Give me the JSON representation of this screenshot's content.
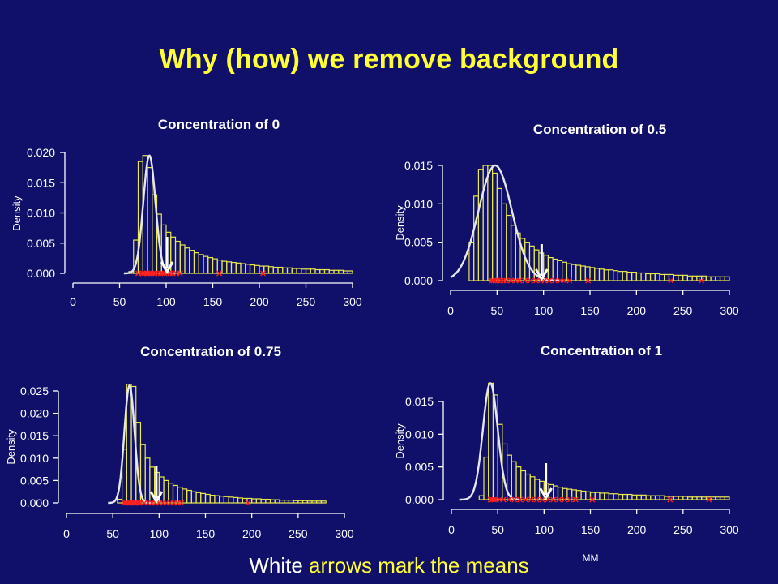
{
  "slide": {
    "title": "Why (how) we remove background",
    "caption_white": "White",
    "caption_yellow": "arrows mark the means"
  },
  "colors": {
    "background": "#10106a",
    "title": "#ffff33",
    "histogram": "#e8e84a",
    "density_curve": "#e6e6f0",
    "arrow": "#ffffff",
    "rug_marks": "#ff2020",
    "axes": "#ffffff"
  },
  "chart_data": [
    {
      "type": "histogram",
      "title": "Concentration of 0",
      "xlabel": "",
      "ylabel": "Density",
      "xlim": [
        0,
        300
      ],
      "ylim": [
        0,
        0.02
      ],
      "xticks": [
        "0",
        "50",
        "100",
        "150",
        "200",
        "250",
        "300"
      ],
      "yticks": [
        "0.000",
        "0.005",
        "0.010",
        "0.015",
        "0.020"
      ],
      "bin_start": 60,
      "bin_width": 5,
      "histogram_densities": [
        0.0003,
        0.0055,
        0.0185,
        0.0195,
        0.0175,
        0.013,
        0.0098,
        0.008,
        0.0068,
        0.006,
        0.0053,
        0.0047,
        0.0042,
        0.0038,
        0.0034,
        0.0031,
        0.0028,
        0.0026,
        0.0024,
        0.0022,
        0.002,
        0.0019,
        0.0018,
        0.0017,
        0.0016,
        0.0015,
        0.0014,
        0.0013,
        0.0012,
        0.0012,
        0.0011,
        0.001,
        0.001,
        0.0009,
        0.0009,
        0.0008,
        0.0008,
        0.0007,
        0.0007,
        0.0007,
        0.0006,
        0.0006,
        0.0006,
        0.0005,
        0.0005,
        0.0005,
        0.0004,
        0.0004
      ],
      "density_curve": {
        "mean": 82,
        "sd": 6.5,
        "peak": 0.0195
      },
      "mean_arrow": 101,
      "rug_x": [
        70,
        73,
        75,
        77,
        79,
        80,
        82,
        84,
        86,
        88,
        91,
        94,
        96,
        98,
        101,
        104,
        107,
        111,
        115,
        157,
        204
      ]
    },
    {
      "type": "histogram",
      "title": "Concentration of 0.5",
      "xlabel": "",
      "ylabel": "Density",
      "xlim": [
        0,
        300
      ],
      "ylim": [
        0,
        0.015
      ],
      "xticks": [
        "0",
        "50",
        "100",
        "150",
        "200",
        "250",
        "300"
      ],
      "yticks": [
        "0.000",
        "0.005",
        "0.010",
        "0.015"
      ],
      "bin_start": 20,
      "bin_width": 5,
      "histogram_densities": [
        0.005,
        0.011,
        0.0145,
        0.015,
        0.015,
        0.014,
        0.012,
        0.01,
        0.0085,
        0.0072,
        0.0062,
        0.0055,
        0.005,
        0.0045,
        0.004,
        0.0036,
        0.0033,
        0.003,
        0.0028,
        0.0026,
        0.0024,
        0.0022,
        0.0021,
        0.002,
        0.0019,
        0.0018,
        0.0017,
        0.0016,
        0.0015,
        0.0014,
        0.0014,
        0.0013,
        0.0012,
        0.0012,
        0.0011,
        0.0011,
        0.001,
        0.001,
        0.0009,
        0.0009,
        0.0009,
        0.0008,
        0.0008,
        0.0008,
        0.0007,
        0.0007,
        0.0007,
        0.0006,
        0.0006,
        0.0006,
        0.0006,
        0.0005,
        0.0005,
        0.0005,
        0.0005,
        0.0005
      ],
      "density_curve": {
        "mean": 48,
        "sd": 18,
        "peak": 0.015
      },
      "mean_arrow": 98,
      "rug_x": [
        44,
        46,
        48,
        51,
        54,
        57,
        60,
        65,
        70,
        74,
        80,
        86,
        92,
        97,
        101,
        106,
        112,
        118,
        122,
        128,
        148,
        237,
        270
      ]
    },
    {
      "type": "histogram",
      "title": "Concentration of 0.75",
      "xlabel": "",
      "ylabel": "Density",
      "xlim": [
        0,
        300
      ],
      "ylim": [
        0,
        0.025
      ],
      "xticks": [
        "0",
        "50",
        "100",
        "150",
        "200",
        "250",
        "300"
      ],
      "yticks": [
        "0.000",
        "0.005",
        "0.010",
        "0.015",
        "0.020",
        "0.025"
      ],
      "bin_start": 55,
      "bin_width": 5,
      "histogram_densities": [
        0.0008,
        0.012,
        0.0265,
        0.026,
        0.018,
        0.013,
        0.01,
        0.008,
        0.0068,
        0.0058,
        0.005,
        0.0044,
        0.0039,
        0.0035,
        0.0031,
        0.0028,
        0.0025,
        0.0023,
        0.0021,
        0.0019,
        0.0017,
        0.0016,
        0.0015,
        0.0014,
        0.0013,
        0.0012,
        0.0011,
        0.001,
        0.001,
        0.0009,
        0.0009,
        0.0008,
        0.0008,
        0.0007,
        0.0007,
        0.0006,
        0.0006,
        0.0006,
        0.0005,
        0.0005,
        0.0005,
        0.0004,
        0.0004,
        0.0004,
        0.0004
      ],
      "density_curve": {
        "mean": 68,
        "sd": 5.5,
        "peak": 0.0262
      },
      "mean_arrow": 97,
      "rug_x": [
        62,
        64,
        66,
        68,
        70,
        72,
        74,
        76,
        78,
        80,
        84,
        88,
        92,
        96,
        100,
        104,
        108,
        112,
        116,
        120,
        124,
        196
      ]
    },
    {
      "type": "histogram",
      "title": "Concentration of 1",
      "xlabel": "MM",
      "ylabel": "Density",
      "xlim": [
        0,
        300
      ],
      "ylim": [
        0,
        0.015
      ],
      "xticks": [
        "0",
        "50",
        "100",
        "150",
        "200",
        "250",
        "300"
      ],
      "yticks": [
        "0.000",
        "0.005",
        "0.010",
        "0.015"
      ],
      "bin_start": 30,
      "bin_width": 5,
      "histogram_densities": [
        0.0006,
        0.0065,
        0.0178,
        0.016,
        0.0115,
        0.0085,
        0.0068,
        0.0058,
        0.005,
        0.0044,
        0.0039,
        0.0035,
        0.0031,
        0.0028,
        0.0025,
        0.0023,
        0.0021,
        0.0019,
        0.0017,
        0.0016,
        0.0015,
        0.0014,
        0.0013,
        0.0012,
        0.0011,
        0.0011,
        0.001,
        0.001,
        0.0009,
        0.0009,
        0.0008,
        0.0008,
        0.0008,
        0.0007,
        0.0007,
        0.0007,
        0.0006,
        0.0006,
        0.0006,
        0.0006,
        0.0005,
        0.0005,
        0.0005,
        0.0005,
        0.0005,
        0.0004,
        0.0004,
        0.0004,
        0.0004,
        0.0004,
        0.0004,
        0.0004,
        0.0004,
        0.0004
      ],
      "density_curve": {
        "mean": 42,
        "sd": 8,
        "peak": 0.0178
      },
      "mean_arrow": 102,
      "rug_x": [
        42,
        44,
        46,
        48,
        52,
        56,
        62,
        68,
        74,
        80,
        86,
        92,
        98,
        104,
        110,
        116,
        122,
        128,
        134,
        152,
        236,
        278
      ]
    }
  ]
}
